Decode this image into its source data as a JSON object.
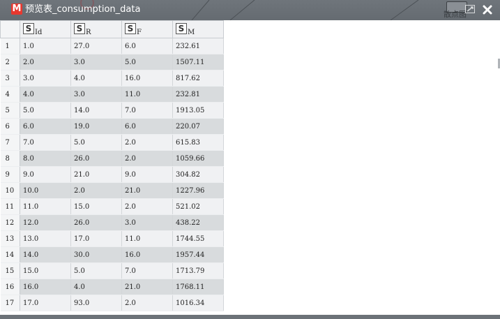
{
  "window": {
    "title": "预览表_consumption_data",
    "app_icon_letter": "M",
    "scatter_label": "散点图",
    "icons": [
      "app-logo-icon",
      "scatter-chart-icon",
      "expand-icon",
      "close-icon"
    ]
  },
  "table": {
    "columns": [
      {
        "type_icon": "S",
        "name": "Id"
      },
      {
        "type_icon": "S",
        "name": "R"
      },
      {
        "type_icon": "S",
        "name": "F"
      },
      {
        "type_icon": "S",
        "name": "M"
      }
    ],
    "rows": [
      {
        "n": "1",
        "cells": [
          "1.0",
          "27.0",
          "6.0",
          "232.61"
        ]
      },
      {
        "n": "2",
        "cells": [
          "2.0",
          "3.0",
          "5.0",
          "1507.11"
        ]
      },
      {
        "n": "3",
        "cells": [
          "3.0",
          "4.0",
          "16.0",
          "817.62"
        ]
      },
      {
        "n": "4",
        "cells": [
          "4.0",
          "3.0",
          "11.0",
          "232.81"
        ]
      },
      {
        "n": "5",
        "cells": [
          "5.0",
          "14.0",
          "7.0",
          "1913.05"
        ]
      },
      {
        "n": "6",
        "cells": [
          "6.0",
          "19.0",
          "6.0",
          "220.07"
        ]
      },
      {
        "n": "7",
        "cells": [
          "7.0",
          "5.0",
          "2.0",
          "615.83"
        ]
      },
      {
        "n": "8",
        "cells": [
          "8.0",
          "26.0",
          "2.0",
          "1059.66"
        ]
      },
      {
        "n": "9",
        "cells": [
          "9.0",
          "21.0",
          "9.0",
          "304.82"
        ]
      },
      {
        "n": "10",
        "cells": [
          "10.0",
          "2.0",
          "21.0",
          "1227.96"
        ]
      },
      {
        "n": "11",
        "cells": [
          "11.0",
          "15.0",
          "2.0",
          "521.02"
        ]
      },
      {
        "n": "12",
        "cells": [
          "12.0",
          "26.0",
          "3.0",
          "438.22"
        ]
      },
      {
        "n": "13",
        "cells": [
          "13.0",
          "17.0",
          "11.0",
          "1744.55"
        ]
      },
      {
        "n": "14",
        "cells": [
          "14.0",
          "30.0",
          "16.0",
          "1957.44"
        ]
      },
      {
        "n": "15",
        "cells": [
          "15.0",
          "5.0",
          "7.0",
          "1713.79"
        ]
      },
      {
        "n": "16",
        "cells": [
          "16.0",
          "4.0",
          "21.0",
          "1768.11"
        ]
      },
      {
        "n": "17",
        "cells": [
          "17.0",
          "93.0",
          "2.0",
          "1016.34"
        ]
      }
    ]
  }
}
